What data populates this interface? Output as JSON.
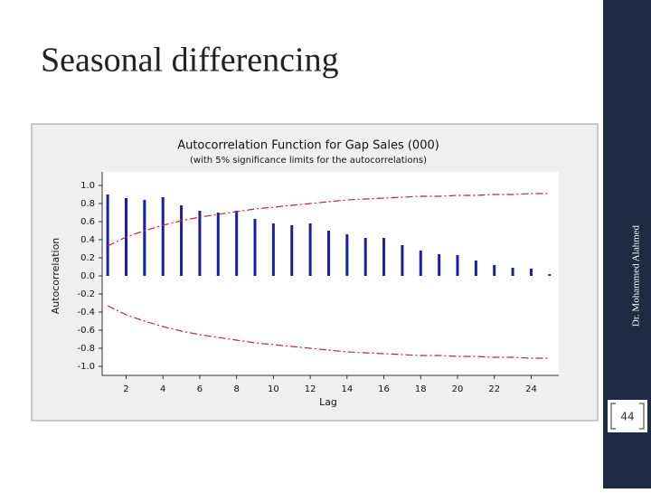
{
  "slide": {
    "title": "Seasonal differencing",
    "side_text": "Dr. Mohammed Alahmed",
    "page_number": "44"
  },
  "chart_data": {
    "type": "bar",
    "title": "Autocorrelation Function for Gap Sales (000)",
    "subtitle": "(with 5% significance limits for the autocorrelations)",
    "x_label": "Lag",
    "y_label": "Autocorrelation",
    "x": [
      1,
      2,
      3,
      4,
      5,
      6,
      7,
      8,
      9,
      10,
      11,
      12,
      13,
      14,
      15,
      16,
      17,
      18,
      19,
      20,
      21,
      22,
      23,
      24,
      25
    ],
    "values": [
      0.9,
      0.86,
      0.84,
      0.87,
      0.78,
      0.72,
      0.7,
      0.72,
      0.63,
      0.58,
      0.56,
      0.58,
      0.5,
      0.46,
      0.42,
      0.42,
      0.34,
      0.28,
      0.24,
      0.23,
      0.17,
      0.12,
      0.09,
      0.08,
      0.02
    ],
    "color": "#1c1ca8",
    "limits": {
      "color": "#c0282d",
      "upper": [
        0.33,
        0.43,
        0.5,
        0.56,
        0.61,
        0.65,
        0.68,
        0.71,
        0.74,
        0.76,
        0.78,
        0.8,
        0.82,
        0.84,
        0.85,
        0.86,
        0.87,
        0.88,
        0.88,
        0.89,
        0.89,
        0.9,
        0.9,
        0.91,
        0.91
      ],
      "lower": [
        -0.33,
        -0.43,
        -0.5,
        -0.56,
        -0.61,
        -0.65,
        -0.68,
        -0.71,
        -0.74,
        -0.76,
        -0.78,
        -0.8,
        -0.82,
        -0.84,
        -0.85,
        -0.86,
        -0.87,
        -0.88,
        -0.88,
        -0.89,
        -0.89,
        -0.9,
        -0.9,
        -0.91,
        -0.91
      ]
    },
    "xlim": [
      0.7,
      25.5
    ],
    "ylim": [
      -1.1,
      1.15
    ],
    "xticks": [
      2,
      4,
      6,
      8,
      10,
      12,
      14,
      16,
      18,
      20,
      22,
      24
    ],
    "yticks": [
      {
        "value": 1,
        "label": "1.0"
      },
      0.8,
      0.6,
      0.4,
      0.2,
      {
        "value": 0,
        "label": "0.0"
      },
      -0.2,
      -0.4,
      -0.6,
      -0.8,
      {
        "value": -1,
        "label": "-1.0"
      }
    ]
  }
}
